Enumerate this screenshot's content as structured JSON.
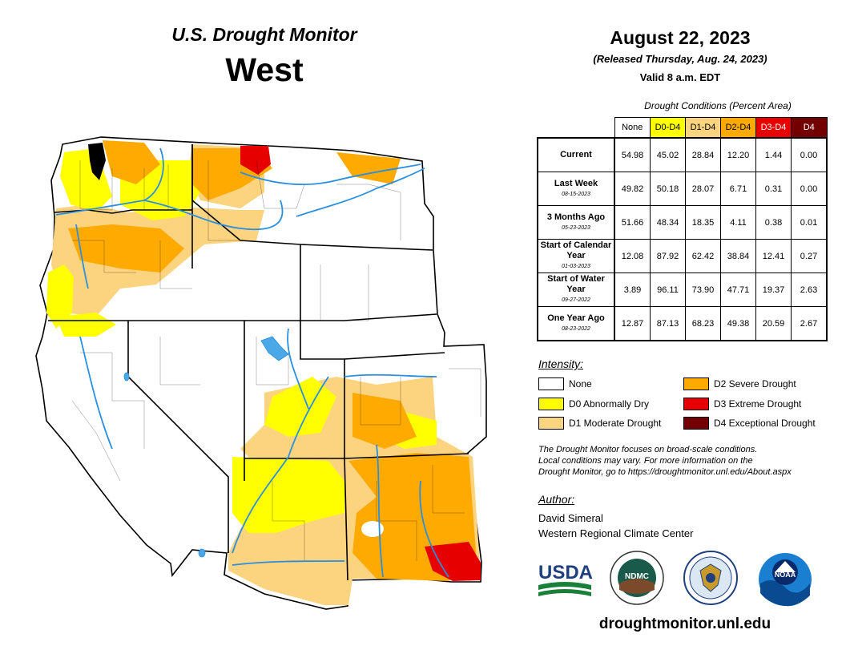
{
  "header": {
    "title": "U.S. Drought Monitor",
    "region": "West",
    "date": "August 22, 2023",
    "released": "(Released Thursday, Aug. 24, 2023)",
    "valid": "Valid 8 a.m. EDT"
  },
  "conditions_table": {
    "caption": "Drought Conditions (Percent Area)",
    "columns": [
      {
        "label": "None",
        "color": "#ffffff",
        "text_color": "#000000"
      },
      {
        "label": "D0-D4",
        "color": "#ffff00",
        "text_color": "#000000"
      },
      {
        "label": "D1-D4",
        "color": "#fcd37f",
        "text_color": "#000000"
      },
      {
        "label": "D2-D4",
        "color": "#ffaa00",
        "text_color": "#000000"
      },
      {
        "label": "D3-D4",
        "color": "#e60000",
        "text_color": "#ffffff"
      },
      {
        "label": "D4",
        "color": "#730000",
        "text_color": "#ffffff"
      }
    ],
    "rows": [
      {
        "label": "Current",
        "date": "",
        "values": [
          "54.98",
          "45.02",
          "28.84",
          "12.20",
          "1.44",
          "0.00"
        ]
      },
      {
        "label": "Last Week",
        "date": "08-15-2023",
        "values": [
          "49.82",
          "50.18",
          "28.07",
          "6.71",
          "0.31",
          "0.00"
        ]
      },
      {
        "label": "3 Months Ago",
        "date": "05-23-2023",
        "values": [
          "51.66",
          "48.34",
          "18.35",
          "4.11",
          "0.38",
          "0.01"
        ]
      },
      {
        "label": "Start of Calendar Year",
        "date": "01-03-2023",
        "values": [
          "12.08",
          "87.92",
          "62.42",
          "38.84",
          "12.41",
          "0.27"
        ]
      },
      {
        "label": "Start of Water Year",
        "date": "09-27-2022",
        "values": [
          "3.89",
          "96.11",
          "73.90",
          "47.71",
          "19.37",
          "2.63"
        ]
      },
      {
        "label": "One Year Ago",
        "date": "08-23-2022",
        "values": [
          "12.87",
          "87.13",
          "68.23",
          "49.38",
          "20.59",
          "2.67"
        ]
      }
    ]
  },
  "legend": {
    "title": "Intensity:",
    "items": [
      {
        "label": "None",
        "color": "#ffffff"
      },
      {
        "label": "D0 Abnormally Dry",
        "color": "#ffff00"
      },
      {
        "label": "D1 Moderate Drought",
        "color": "#fcd37f"
      },
      {
        "label": "D2 Severe Drought",
        "color": "#ffaa00"
      },
      {
        "label": "D3 Extreme Drought",
        "color": "#e60000"
      },
      {
        "label": "D4 Exceptional Drought",
        "color": "#730000"
      }
    ]
  },
  "note": {
    "line1": "The Drought Monitor focuses on broad-scale conditions.",
    "line2": "Local conditions may vary. For more information on the",
    "line3": "Drought Monitor, go to https://droughtmonitor.unl.edu/About.aspx"
  },
  "author": {
    "title": "Author:",
    "name": "David Simeral",
    "org": "Western Regional Climate Center"
  },
  "logos": {
    "usda": "USDA",
    "ndmc": "NDMC",
    "noaa": "NOAA"
  },
  "website": "droughtmonitor.unl.edu",
  "map": {
    "colors": {
      "none": "#ffffff",
      "d0": "#ffff00",
      "d1": "#fcd37f",
      "d2": "#ffaa00",
      "d3": "#e60000",
      "d4": "#730000",
      "water": "#4aa8e8"
    }
  }
}
